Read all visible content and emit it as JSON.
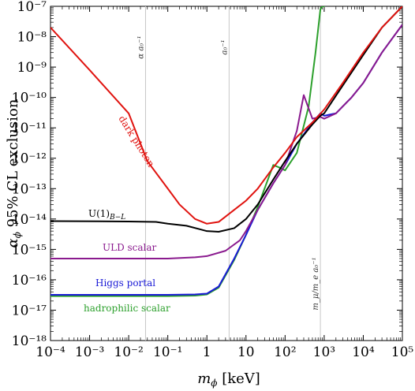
{
  "chart_data": {
    "type": "line",
    "xlabel": "m_ϕ [keV]",
    "ylabel": "α_ϕ  95% CL exclusion",
    "xscale": "log",
    "yscale": "log",
    "xlim": [
      0.0001,
      100000
    ],
    "ylim": [
      1e-18,
      1e-07
    ],
    "x_ticks": [
      {
        "value": 0.0001,
        "label": "10⁻⁴"
      },
      {
        "value": 0.001,
        "label": "10⁻³"
      },
      {
        "value": 0.01,
        "label": "10⁻²"
      },
      {
        "value": 0.1,
        "label": "10⁻¹"
      },
      {
        "value": 1,
        "label": "1"
      },
      {
        "value": 10,
        "label": "10"
      },
      {
        "value": 100,
        "label": "10²"
      },
      {
        "value": 1000,
        "label": "10³"
      },
      {
        "value": 10000,
        "label": "10⁴"
      },
      {
        "value": 100000,
        "label": "10⁵"
      }
    ],
    "y_ticks": [
      {
        "value": 1e-18,
        "label": "10⁻¹⁸"
      },
      {
        "value": 1e-17,
        "label": "10⁻¹⁷"
      },
      {
        "value": 1e-16,
        "label": "10⁻¹⁶"
      },
      {
        "value": 1e-15,
        "label": "10⁻¹⁵"
      },
      {
        "value": 1e-14,
        "label": "10⁻¹⁴"
      },
      {
        "value": 1e-13,
        "label": "10⁻¹³"
      },
      {
        "value": 1e-12,
        "label": "10⁻¹²"
      },
      {
        "value": 1e-11,
        "label": "10⁻¹¹"
      },
      {
        "value": 1e-10,
        "label": "10⁻¹⁰"
      },
      {
        "value": 1e-09,
        "label": "10⁻⁹"
      },
      {
        "value": 1e-08,
        "label": "10⁻⁸"
      },
      {
        "value": 1e-07,
        "label": "10⁻⁷"
      }
    ],
    "vlines": [
      {
        "x": 0.027,
        "label": "α a₀⁻¹"
      },
      {
        "x": 3.7,
        "label": "a₀⁻¹"
      },
      {
        "x": 800,
        "label": "m_μ/m_e a₀⁻¹"
      }
    ],
    "series": [
      {
        "name": "dark photon",
        "color": "#e0130f",
        "points": [
          [
            0.0001,
            2e-08
          ],
          [
            0.001,
            8e-10
          ],
          [
            0.01,
            3e-11
          ],
          [
            0.03,
            8e-13
          ],
          [
            0.1,
            1e-13
          ],
          [
            0.2,
            3e-14
          ],
          [
            0.5,
            1e-14
          ],
          [
            1,
            7e-15
          ],
          [
            2,
            8e-15
          ],
          [
            5,
            2e-14
          ],
          [
            10,
            4e-14
          ],
          [
            20,
            1e-13
          ],
          [
            50,
            5e-13
          ],
          [
            100,
            1.5e-12
          ],
          [
            200,
            5e-12
          ],
          [
            500,
            1.5e-11
          ],
          [
            1000,
            4e-11
          ],
          [
            3000,
            3e-10
          ],
          [
            10000,
            3e-09
          ],
          [
            30000,
            2e-08
          ],
          [
            100000,
            1e-07
          ]
        ]
      },
      {
        "name": "U(1)_{B−L}",
        "color": "#000000",
        "points": [
          [
            0.0001,
            8.5e-15
          ],
          [
            0.01,
            8.3e-15
          ],
          [
            0.05,
            8e-15
          ],
          [
            0.1,
            7e-15
          ],
          [
            0.3,
            6e-15
          ],
          [
            1,
            4e-15
          ],
          [
            2,
            3.8e-15
          ],
          [
            5,
            5e-15
          ],
          [
            10,
            1e-14
          ],
          [
            20,
            3e-14
          ],
          [
            50,
            2e-13
          ],
          [
            100,
            8e-13
          ],
          [
            200,
            3e-12
          ],
          [
            500,
            1.3e-11
          ],
          [
            800,
            2.5e-11
          ],
          [
            1000,
            3e-11
          ],
          [
            3000,
            2.5e-10
          ],
          [
            10000,
            2.5e-09
          ],
          [
            30000,
            2e-08
          ],
          [
            100000,
            1e-07
          ]
        ]
      },
      {
        "name": "ULD scalar",
        "color": "#8a1a8e",
        "points": [
          [
            0.0001,
            5e-16
          ],
          [
            0.1,
            5e-16
          ],
          [
            0.5,
            5.5e-16
          ],
          [
            1,
            6e-16
          ],
          [
            3,
            9e-16
          ],
          [
            7,
            2e-15
          ],
          [
            10,
            4e-15
          ],
          [
            20,
            2e-14
          ],
          [
            50,
            1.5e-13
          ],
          [
            100,
            6e-13
          ],
          [
            200,
            8e-12
          ],
          [
            300,
            1.2e-10
          ],
          [
            500,
            2e-11
          ],
          [
            800,
            2.3e-11
          ],
          [
            1000,
            2e-11
          ],
          [
            2000,
            3e-11
          ],
          [
            5000,
            1e-10
          ],
          [
            10000,
            3e-10
          ],
          [
            30000,
            3e-09
          ],
          [
            100000,
            2.5e-08
          ]
        ]
      },
      {
        "name": "Higgs portal",
        "color": "#1a1ad6",
        "points": [
          [
            0.0001,
            3.2e-17
          ],
          [
            0.1,
            3.2e-17
          ],
          [
            0.5,
            3.3e-17
          ],
          [
            1,
            3.5e-17
          ],
          [
            2,
            6e-17
          ],
          [
            5,
            5e-16
          ],
          [
            10,
            3e-15
          ],
          [
            20,
            2e-14
          ],
          [
            50,
            1.5e-13
          ],
          [
            100,
            6e-13
          ],
          [
            200,
            3e-12
          ],
          [
            500,
            1.5e-11
          ],
          [
            800,
            3e-11
          ],
          [
            1000,
            2.5e-11
          ],
          [
            2000,
            3e-11
          ],
          [
            5000,
            1e-10
          ],
          [
            10000,
            3e-10
          ],
          [
            30000,
            3e-09
          ],
          [
            100000,
            2.5e-08
          ]
        ]
      },
      {
        "name": "hadrophilic scalar",
        "color": "#2ca02c",
        "points": [
          [
            0.0001,
            2.9e-17
          ],
          [
            0.1,
            2.9e-17
          ],
          [
            0.5,
            3e-17
          ],
          [
            1,
            3.3e-17
          ],
          [
            2,
            5.5e-17
          ],
          [
            5,
            4.5e-16
          ],
          [
            10,
            3e-15
          ],
          [
            20,
            2.5e-14
          ],
          [
            50,
            6e-13
          ],
          [
            70,
            5e-13
          ],
          [
            100,
            4e-13
          ],
          [
            200,
            1.5e-12
          ],
          [
            400,
            5e-11
          ],
          [
            600,
            3e-09
          ],
          [
            800,
            8e-08
          ],
          [
            900,
            1e-07
          ],
          [
            1000,
            1e-07
          ],
          [
            1300,
            1e-06
          ]
        ]
      }
    ]
  }
}
